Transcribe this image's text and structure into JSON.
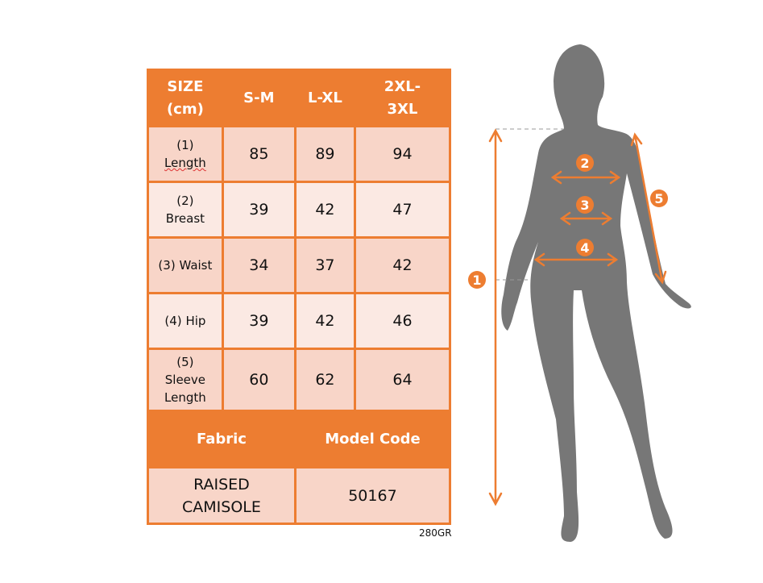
{
  "table": {
    "header": [
      "SIZE (cm)",
      "S-M",
      "L-XL",
      "2XL-3XL"
    ],
    "rows": [
      {
        "label_num": "(1)",
        "label": "Length",
        "values": [
          "85",
          "89",
          "94"
        ]
      },
      {
        "label_num": "(2)",
        "label": "Breast",
        "values": [
          "39",
          "42",
          "47"
        ]
      },
      {
        "label_num": "(3)",
        "label": "Waist",
        "values": [
          "34",
          "37",
          "42"
        ]
      },
      {
        "label_num": "(4)",
        "label": "Hip",
        "values": [
          "39",
          "42",
          "46"
        ]
      },
      {
        "label_num": "(5)",
        "label": "Sleeve Length",
        "values": [
          "60",
          "62",
          "64"
        ]
      }
    ],
    "footer_header": [
      "Fabric",
      "Model Code"
    ],
    "footer_values": [
      "RAISED CAMISOLE",
      "50167"
    ]
  },
  "code": "280GR",
  "figure": {
    "markers": [
      "1",
      "2",
      "3",
      "4",
      "5"
    ]
  },
  "colors": {
    "accent": "#ED7D31",
    "cell_dark": "#F8D5C8",
    "cell_light": "#FBE9E3",
    "silhouette": "#777777"
  }
}
